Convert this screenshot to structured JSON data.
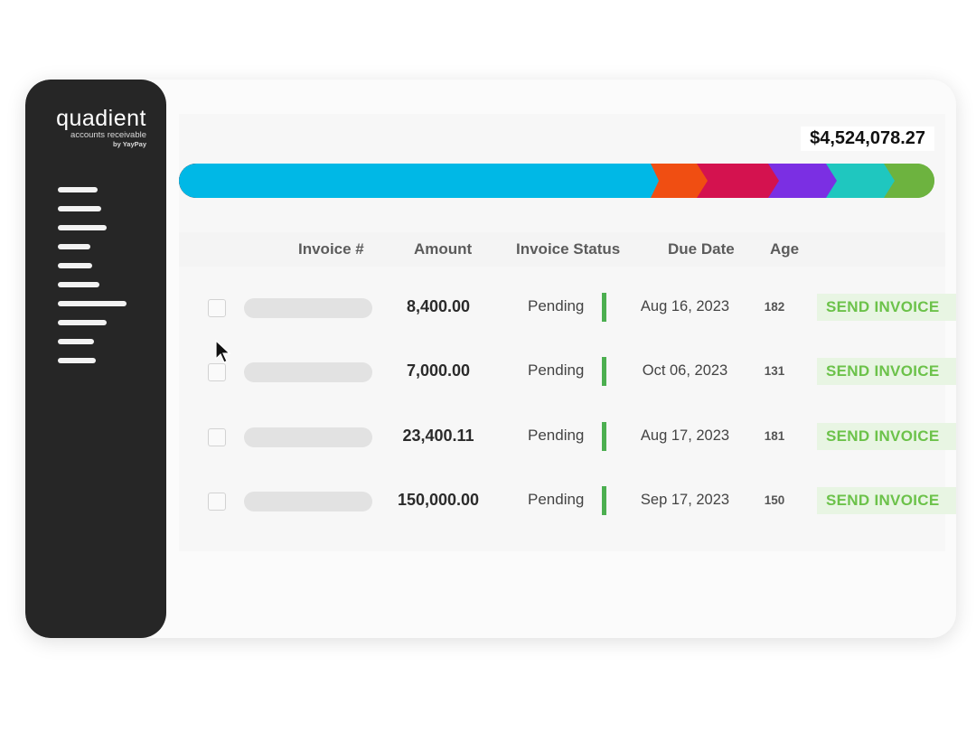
{
  "brand": {
    "name": "quadient",
    "product": "accounts receivable",
    "byline": "by YayPay"
  },
  "sidebar": {
    "menu_icon": "menu-lines-icon"
  },
  "summary": {
    "total": "$4,524,078.27",
    "segment_colors": [
      "#00b8e6",
      "#f04e12",
      "#d4124f",
      "#7b2fe3",
      "#1fc7bf",
      "#6db33f"
    ]
  },
  "table": {
    "columns": [
      "Invoice #",
      "Amount",
      "Invoice Status",
      "Due Date",
      "Age"
    ],
    "rows": [
      {
        "amount": "8,400.00",
        "status": "Pending",
        "due": "Aug 16, 2023",
        "age": "182",
        "action": "SEND INVOICE"
      },
      {
        "amount": "7,000.00",
        "status": "Pending",
        "due": "Oct 06, 2023",
        "age": "131",
        "action": "SEND INVOICE"
      },
      {
        "amount": "23,400.11",
        "status": "Pending",
        "due": "Aug 17, 2023",
        "age": "181",
        "action": "SEND INVOICE"
      },
      {
        "amount": "150,000.00",
        "status": "Pending",
        "due": "Sep 17, 2023",
        "age": "150",
        "action": "SEND INVOICE"
      }
    ]
  },
  "colors": {
    "sidebar": "#262626",
    "status_pending": "#4caf50",
    "send_text": "#6cc24a",
    "send_bg": "#e8f5e3"
  }
}
